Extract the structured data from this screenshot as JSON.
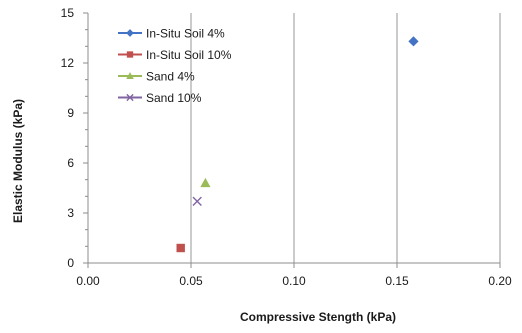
{
  "chart_data": {
    "type": "scatter",
    "title": "",
    "xlabel": "Compressive Stength (kPa)",
    "ylabel": "Elastic Modulus (kPa)",
    "xlim": [
      0,
      0.2
    ],
    "ylim": [
      0,
      15
    ],
    "x_ticks": [
      0,
      0.05,
      0.1,
      0.15,
      0.2
    ],
    "x_tick_labels": [
      "0.00",
      "0.05",
      "0.10",
      "0.15",
      "0.20"
    ],
    "y_ticks": [
      0,
      3,
      6,
      9,
      12,
      15
    ],
    "y_tick_labels": [
      "0",
      "3",
      "6",
      "9",
      "12",
      "15"
    ],
    "grid": "vertical",
    "legend_position": "top-left",
    "series": [
      {
        "name": "In-Situ Soil 4%",
        "marker": "diamond",
        "color": "#4472C4",
        "points": [
          {
            "x": 0.158,
            "y": 13.3
          }
        ]
      },
      {
        "name": "In-Situ Soil 10%",
        "marker": "square",
        "color": "#C0504D",
        "points": [
          {
            "x": 0.045,
            "y": 0.9
          }
        ]
      },
      {
        "name": "Sand 4%",
        "marker": "triangle",
        "color": "#9BBB59",
        "points": [
          {
            "x": 0.057,
            "y": 4.8
          }
        ]
      },
      {
        "name": "Sand 10%",
        "marker": "x",
        "color": "#8064A2",
        "points": [
          {
            "x": 0.053,
            "y": 3.7
          }
        ]
      }
    ]
  }
}
